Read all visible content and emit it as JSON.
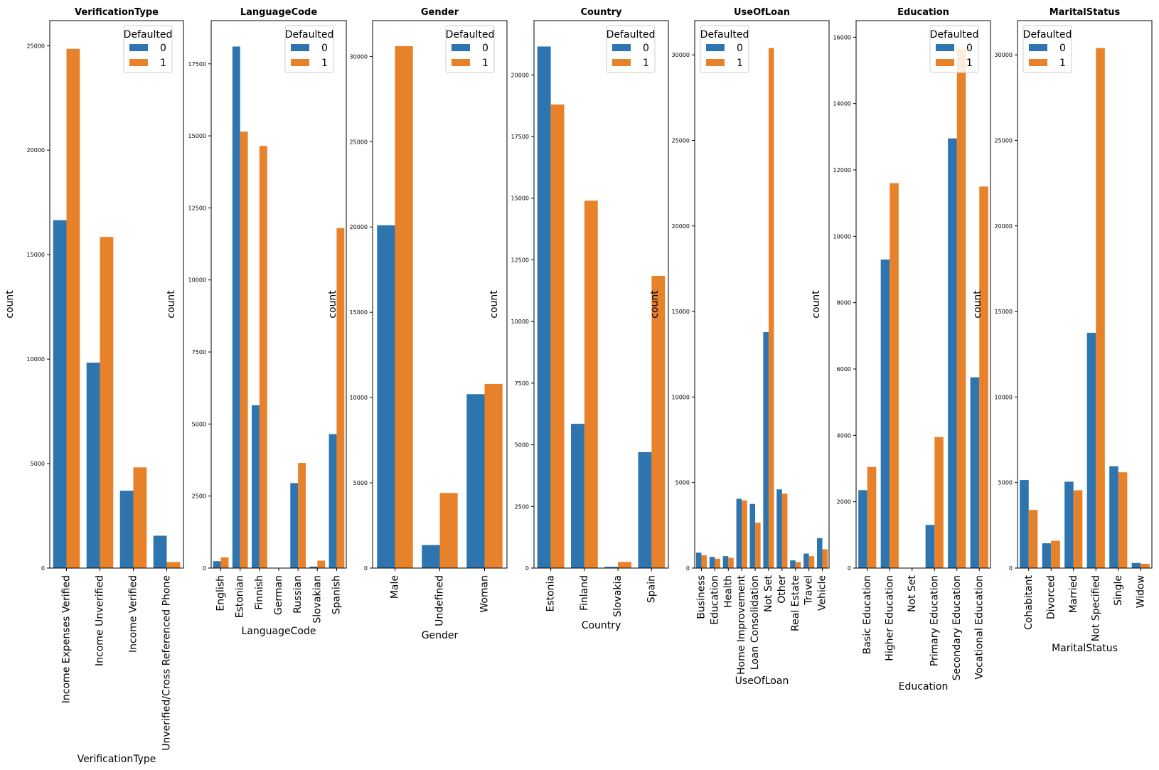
{
  "colors": {
    "series_0": "#2e75b0",
    "series_1": "#e8822a",
    "axis": "#000000",
    "background": "#ffffff"
  },
  "chart_data": [
    {
      "type": "bar",
      "title": "VerificationType",
      "xlabel": "VerificationType",
      "ylabel": "count",
      "ylim": [
        0,
        26200
      ],
      "yticks": [
        0,
        5000,
        10000,
        15000,
        20000,
        25000
      ],
      "legend": {
        "title": "Defaulted",
        "entries": [
          "0",
          "1"
        ],
        "placement": "top-right"
      },
      "categories": [
        "Income Expenses Verified",
        "Income Unverified",
        "Income Verified",
        "Unverified/Cross Referenced Phone"
      ],
      "series": [
        {
          "name": "0",
          "values": [
            16650,
            9830,
            3700,
            1550
          ]
        },
        {
          "name": "1",
          "values": [
            24850,
            15850,
            4820,
            290
          ]
        }
      ]
    },
    {
      "type": "bar",
      "title": "LanguageCode",
      "xlabel": "LanguageCode",
      "ylabel": "count",
      "ylim": [
        0,
        19000
      ],
      "yticks": [
        0,
        2500,
        5000,
        7500,
        10000,
        12500,
        15000,
        17500
      ],
      "legend": {
        "title": "Defaulted",
        "entries": [
          "0",
          "1"
        ],
        "placement": "top-right"
      },
      "categories": [
        "English",
        "Estonian",
        "Finnish",
        "German",
        "Russian",
        "Slovakian",
        "Spanish"
      ],
      "series": [
        {
          "name": "0",
          "values": [
            240,
            18100,
            5650,
            0,
            2950,
            50,
            4650
          ]
        },
        {
          "name": "1",
          "values": [
            370,
            15150,
            14650,
            0,
            3650,
            260,
            11800
          ]
        }
      ]
    },
    {
      "type": "bar",
      "title": "Gender",
      "xlabel": "Gender",
      "ylabel": "count",
      "ylim": [
        0,
        32100
      ],
      "yticks": [
        0,
        5000,
        10000,
        15000,
        20000,
        25000,
        30000
      ],
      "legend": {
        "title": "Defaulted",
        "entries": [
          "0",
          "1"
        ],
        "placement": "top-right"
      },
      "categories": [
        "Male",
        "Undefined",
        "Woman"
      ],
      "series": [
        {
          "name": "0",
          "values": [
            20100,
            1350,
            10200
          ]
        },
        {
          "name": "1",
          "values": [
            30600,
            4400,
            10800
          ]
        }
      ]
    },
    {
      "type": "bar",
      "title": "Country",
      "xlabel": "Country",
      "ylabel": "count",
      "ylim": [
        0,
        22200
      ],
      "yticks": [
        0,
        2500,
        5000,
        7500,
        10000,
        12500,
        15000,
        17500,
        20000
      ],
      "legend": {
        "title": "Defaulted",
        "entries": [
          "0",
          "1"
        ],
        "placement": "top-right"
      },
      "categories": [
        "Estonia",
        "Finland",
        "Slovakia",
        "Spain"
      ],
      "series": [
        {
          "name": "0",
          "values": [
            21150,
            5850,
            50,
            4700
          ]
        },
        {
          "name": "1",
          "values": [
            18800,
            14900,
            250,
            11850
          ]
        }
      ]
    },
    {
      "type": "bar",
      "title": "UseOfLoan",
      "xlabel": "UseOfLoan",
      "ylabel": "count",
      "ylim": [
        0,
        32000
      ],
      "yticks": [
        0,
        5000,
        10000,
        15000,
        20000,
        25000,
        30000
      ],
      "legend": {
        "title": "Defaulted",
        "entries": [
          "0",
          "1"
        ],
        "placement": "top-left"
      },
      "categories": [
        "Business",
        "Education",
        "Health",
        "Home Improvement",
        "Loan Consolidation",
        "Not Set",
        "Other",
        "Real Estate",
        "Travel",
        "Vehicle"
      ],
      "series": [
        {
          "name": "0",
          "values": [
            900,
            650,
            700,
            4050,
            3750,
            13800,
            4600,
            450,
            850,
            1750
          ]
        },
        {
          "name": "1",
          "values": [
            750,
            550,
            600,
            3950,
            2650,
            30400,
            4350,
            350,
            700,
            1100
          ]
        }
      ]
    },
    {
      "type": "bar",
      "title": "Education",
      "xlabel": "Education",
      "ylabel": "count",
      "ylim": [
        0,
        16500
      ],
      "yticks": [
        0,
        2000,
        4000,
        6000,
        8000,
        10000,
        12000,
        14000,
        16000
      ],
      "legend": {
        "title": "Defaulted",
        "entries": [
          "0",
          "1"
        ],
        "placement": "top-right"
      },
      "categories": [
        "Basic Education",
        "Higher Education",
        "Not Set",
        "Primary Education",
        "Secondary Education",
        "Vocational Education"
      ],
      "series": [
        {
          "name": "0",
          "values": [
            2350,
            9300,
            0,
            1300,
            12950,
            5750
          ]
        },
        {
          "name": "1",
          "values": [
            3050,
            11600,
            0,
            3950,
            15650,
            11500
          ]
        }
      ]
    },
    {
      "type": "bar",
      "title": "MaritalStatus",
      "xlabel": "MaritalStatus",
      "ylabel": "count",
      "ylim": [
        0,
        32000
      ],
      "yticks": [
        0,
        5000,
        10000,
        15000,
        20000,
        25000,
        30000
      ],
      "legend": {
        "title": "Defaulted",
        "entries": [
          "0",
          "1"
        ],
        "placement": "top-left"
      },
      "categories": [
        "Cohabitant",
        "Divorced",
        "Married",
        "Not Specified",
        "Single",
        "Widow"
      ],
      "series": [
        {
          "name": "0",
          "values": [
            5150,
            1450,
            5050,
            13750,
            5950,
            300
          ]
        },
        {
          "name": "1",
          "values": [
            3400,
            1600,
            4550,
            30400,
            5600,
            250
          ]
        }
      ]
    }
  ]
}
